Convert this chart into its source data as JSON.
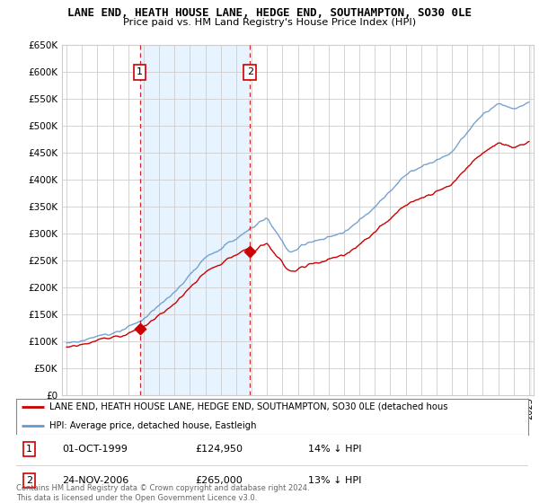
{
  "title": "LANE END, HEATH HOUSE LANE, HEDGE END, SOUTHAMPTON, SO30 0LE",
  "subtitle": "Price paid vs. HM Land Registry's House Price Index (HPI)",
  "legend_line1": "LANE END, HEATH HOUSE LANE, HEDGE END, SOUTHAMPTON, SO30 0LE (detached hous",
  "legend_line2": "HPI: Average price, detached house, Eastleigh",
  "annotation1_date": "01-OCT-1999",
  "annotation1_price": "£124,950",
  "annotation1_hpi": "14% ↓ HPI",
  "annotation2_date": "24-NOV-2006",
  "annotation2_price": "£265,000",
  "annotation2_hpi": "13% ↓ HPI",
  "footer": "Contains HM Land Registry data © Crown copyright and database right 2024.\nThis data is licensed under the Open Government Licence v3.0.",
  "ylim": [
    0,
    650000
  ],
  "ytick_max": 650000,
  "hpi_color": "#6699cc",
  "price_color": "#cc0000",
  "vline_color": "#cc0000",
  "shade_color": "#ddeeff",
  "grid_color": "#cccccc",
  "background_color": "#ffffff",
  "plot_bg_color": "#ffffff",
  "sale1_year": 1999.75,
  "sale1_price": 124950,
  "sale2_year": 2006.9,
  "sale2_price": 265000,
  "end_year": 2025.0
}
